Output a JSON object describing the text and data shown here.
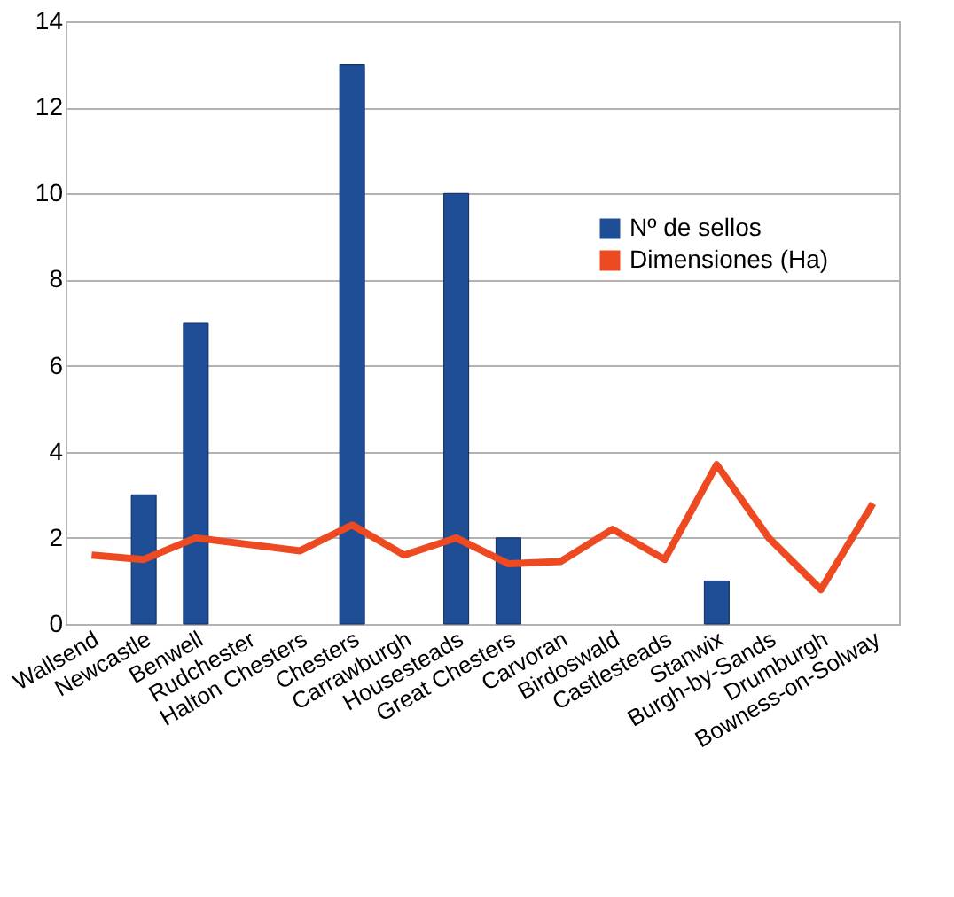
{
  "chart_data": {
    "type": "bar",
    "categories": [
      "Wallsend",
      "Newcastle",
      "Benwell",
      "Rudchester",
      "Halton Chesters",
      "Chesters",
      "Carrawburgh",
      "Housesteads",
      "Great Chesters",
      "Carvoran",
      "Birdoswald",
      "Castlesteads",
      "Stanwix",
      "Burgh-by-Sands",
      "Drumburgh",
      "Bowness-on-Solway"
    ],
    "series": [
      {
        "name": "Nº de sellos",
        "color": "#1f4e96",
        "values": [
          null,
          3,
          7,
          null,
          null,
          13,
          null,
          10,
          2,
          null,
          null,
          null,
          1,
          null,
          null,
          null
        ]
      },
      {
        "name": "Dimensiones (Ha)",
        "type": "line",
        "color": "#ee4a22",
        "values": [
          1.6,
          1.5,
          2.0,
          1.85,
          1.7,
          2.3,
          1.6,
          2.0,
          1.4,
          1.45,
          2.2,
          1.5,
          3.7,
          2.0,
          0.8,
          2.8
        ]
      }
    ],
    "ylim": [
      0,
      14
    ],
    "yticks": [
      0,
      2,
      4,
      6,
      8,
      10,
      12,
      14
    ],
    "grid": "y",
    "legend": "right",
    "marker": "none",
    "line_style": "solid"
  }
}
